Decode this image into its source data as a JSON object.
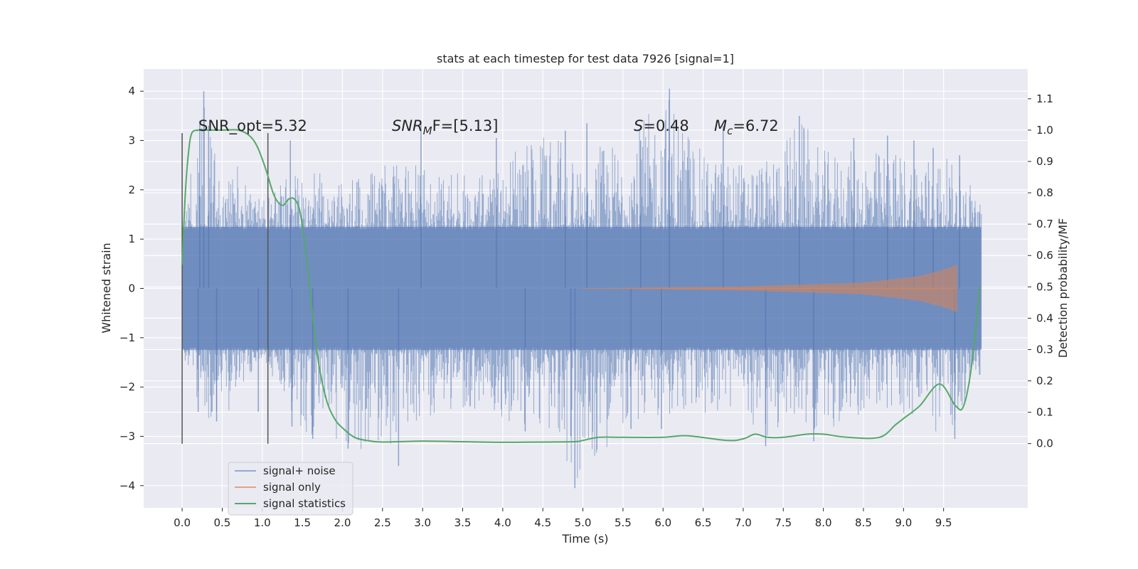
{
  "chart_data": {
    "type": "line",
    "title": "stats at each timestep for test data 7926 [signal=1]",
    "xlabel": "Time (s)",
    "ylabel": "Whitened strain",
    "y2label": "Detection probability/MF",
    "xticks": [
      "0.0",
      "0.5",
      "1.0",
      "1.5",
      "2.0",
      "2.5",
      "3.0",
      "3.5",
      "4.0",
      "4.5",
      "5.0",
      "5.5",
      "6.0",
      "6.5",
      "7.0",
      "7.5",
      "8.0",
      "8.5",
      "9.0",
      "9.5"
    ],
    "yticks": [
      "−4",
      "−3",
      "−2",
      "−1",
      "0",
      "1",
      "2",
      "3",
      "4"
    ],
    "y2ticks": [
      "0.0",
      "0.1",
      "0.2",
      "0.3",
      "0.4",
      "0.5",
      "0.6",
      "0.7",
      "0.8",
      "0.9",
      "1.0",
      "1.1"
    ],
    "xlim": [
      -0.48,
      10.55
    ],
    "ylim": [
      -4.45,
      4.45
    ],
    "y2lim": [
      -0.205,
      1.195
    ],
    "grid": true,
    "legend_position": "lower-left",
    "annotations": {
      "snr_opt": "SNR_opt=5.32",
      "snr_mf_var": "SNR",
      "snr_mf_sub": "M",
      "snr_mf_rest": "F=[5.13]",
      "s_var": "S",
      "s_rest": "=0.48",
      "mc_var": "M",
      "mc_sub": "c",
      "mc_rest": "=6.72"
    },
    "vlines": {
      "x": [
        0.0,
        1.07
      ],
      "ymin": -3.15,
      "ymax": 3.15
    },
    "series": [
      {
        "name": "signal+ noise",
        "color": "#4c72b0",
        "x_range": [
          0.0,
          9.97
        ],
        "envelope": [
          [
            0.0,
            -1.45,
            1.4
          ],
          [
            0.3,
            -2.7,
            4.0
          ],
          [
            0.6,
            -2.5,
            2.7
          ],
          [
            1.0,
            -1.4,
            1.8
          ],
          [
            1.5,
            -2.9,
            2.5
          ],
          [
            2.0,
            -3.3,
            2.2
          ],
          [
            2.5,
            -3.55,
            2.5
          ],
          [
            3.0,
            -2.6,
            2.5
          ],
          [
            3.5,
            -2.5,
            2.4
          ],
          [
            4.0,
            -2.7,
            2.6
          ],
          [
            4.5,
            -2.9,
            3.2
          ],
          [
            4.9,
            -4.05,
            2.8
          ],
          [
            5.5,
            -2.8,
            3.0
          ],
          [
            6.1,
            -2.6,
            4.05
          ],
          [
            6.5,
            -2.6,
            2.7
          ],
          [
            7.0,
            -2.5,
            2.6
          ],
          [
            7.3,
            -3.15,
            2.6
          ],
          [
            7.7,
            -2.6,
            3.5
          ],
          [
            8.0,
            -3.05,
            2.8
          ],
          [
            8.5,
            -2.5,
            2.8
          ],
          [
            9.0,
            -2.6,
            2.8
          ],
          [
            9.5,
            -3.1,
            2.7
          ],
          [
            9.97,
            -1.8,
            2.0
          ]
        ],
        "spikes": [
          [
            0.27,
            4.0
          ],
          [
            0.22,
            3.4
          ],
          [
            0.33,
            3.3
          ],
          [
            0.43,
            -2.7
          ],
          [
            0.2,
            -2.5
          ],
          [
            0.95,
            -2.5
          ],
          [
            1.35,
            3.0
          ],
          [
            1.37,
            -2.8
          ],
          [
            1.63,
            -3.05
          ],
          [
            2.07,
            -3.25
          ],
          [
            2.7,
            -3.6
          ],
          [
            2.98,
            3.35
          ],
          [
            3.92,
            3.05
          ],
          [
            4.28,
            -2.9
          ],
          [
            4.78,
            3.2
          ],
          [
            4.85,
            -3.0
          ],
          [
            4.9,
            -4.05
          ],
          [
            5.05,
            3.35
          ],
          [
            5.6,
            -2.85
          ],
          [
            5.72,
            3.0
          ],
          [
            5.98,
            -2.85
          ],
          [
            6.08,
            4.05
          ],
          [
            6.75,
            3.3
          ],
          [
            7.28,
            -3.2
          ],
          [
            7.7,
            3.5
          ],
          [
            7.88,
            -3.1
          ],
          [
            8.38,
            3.05
          ],
          [
            8.8,
            3.1
          ],
          [
            9.13,
            3.0
          ],
          [
            9.37,
            2.85
          ],
          [
            9.64,
            -3.05
          ],
          [
            9.7,
            2.7
          ]
        ]
      },
      {
        "name": "signal only",
        "color": "#dd8452",
        "x_range": [
          5.0,
          9.67
        ],
        "amplitude": [
          [
            5.0,
            0.0
          ],
          [
            7.0,
            0.04
          ],
          [
            8.5,
            0.12
          ],
          [
            9.2,
            0.25
          ],
          [
            9.5,
            0.38
          ],
          [
            9.67,
            0.48
          ]
        ]
      },
      {
        "name": "signal statistics",
        "color": "#55a868",
        "axis": "right",
        "x": [
          0.0,
          0.04,
          0.08,
          0.12,
          0.2,
          0.3,
          0.5,
          0.7,
          0.85,
          0.95,
          1.05,
          1.15,
          1.25,
          1.33,
          1.4,
          1.47,
          1.55,
          1.62,
          1.7,
          1.8,
          1.9,
          2.0,
          2.15,
          2.3,
          2.5,
          3.0,
          3.5,
          4.0,
          4.5,
          4.9,
          5.0,
          5.2,
          5.5,
          6.0,
          6.3,
          6.8,
          7.0,
          7.15,
          7.3,
          7.5,
          7.8,
          8.0,
          8.3,
          8.7,
          8.9,
          9.0,
          9.2,
          9.45,
          9.65,
          9.75,
          9.85,
          9.95
        ],
        "y": [
          0.57,
          0.8,
          0.93,
          0.99,
          1.0,
          1.0,
          1.0,
          1.0,
          0.98,
          0.94,
          0.87,
          0.79,
          0.76,
          0.78,
          0.78,
          0.74,
          0.6,
          0.43,
          0.26,
          0.14,
          0.08,
          0.05,
          0.02,
          0.01,
          0.005,
          0.008,
          0.006,
          0.004,
          0.005,
          0.006,
          0.01,
          0.02,
          0.02,
          0.02,
          0.025,
          0.01,
          0.015,
          0.03,
          0.02,
          0.02,
          0.03,
          0.03,
          0.02,
          0.02,
          0.06,
          0.08,
          0.12,
          0.19,
          0.12,
          0.12,
          0.25,
          0.5
        ]
      }
    ]
  }
}
